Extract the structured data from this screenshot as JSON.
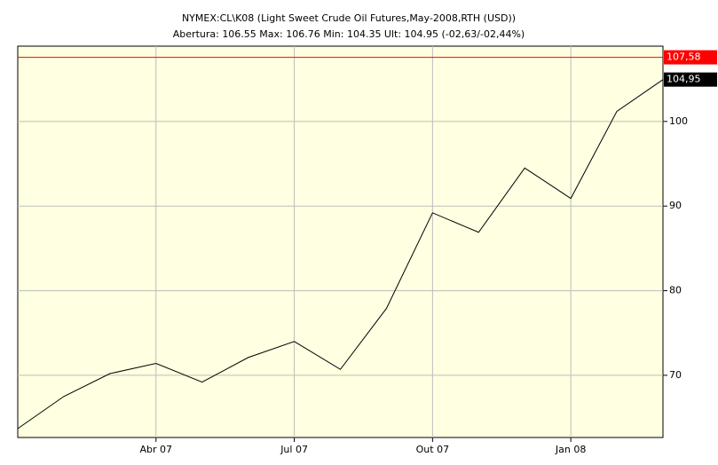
{
  "chart_data": {
    "type": "line",
    "title": "NYMEX:CL\\K08 (Light Sweet Crude Oil Futures,May-2008,RTH (USD))",
    "subtitle": "Abertura: 106.55 Max: 106.76 Min: 104.35 Ult: 104.95 (-02,63/-02,44%)",
    "categories": [
      null,
      null,
      null,
      "Abr 07",
      null,
      null,
      "Jul 07",
      null,
      null,
      "Out 07",
      null,
      null,
      "Jan 08",
      null,
      null
    ],
    "series": [
      {
        "color": "#000000",
        "values": [
          63.7,
          67.5,
          70.2,
          71.4,
          69.2,
          72.1,
          74.0,
          70.7,
          77.9,
          89.2,
          86.9,
          94.5,
          90.9,
          101.2,
          104.95
        ],
        "value_labels": [
          null,
          null,
          null,
          null,
          null,
          null,
          null,
          null,
          null,
          null,
          null,
          null,
          null,
          null,
          "104,95"
        ]
      }
    ],
    "reference_line": {
      "value": 107.58,
      "label": "107,58",
      "color": "#ff0000"
    },
    "ylim": [
      62.65,
      108.9
    ],
    "yticks": [
      70,
      80,
      90,
      100
    ],
    "grid": true,
    "background": "#ffffe1"
  }
}
